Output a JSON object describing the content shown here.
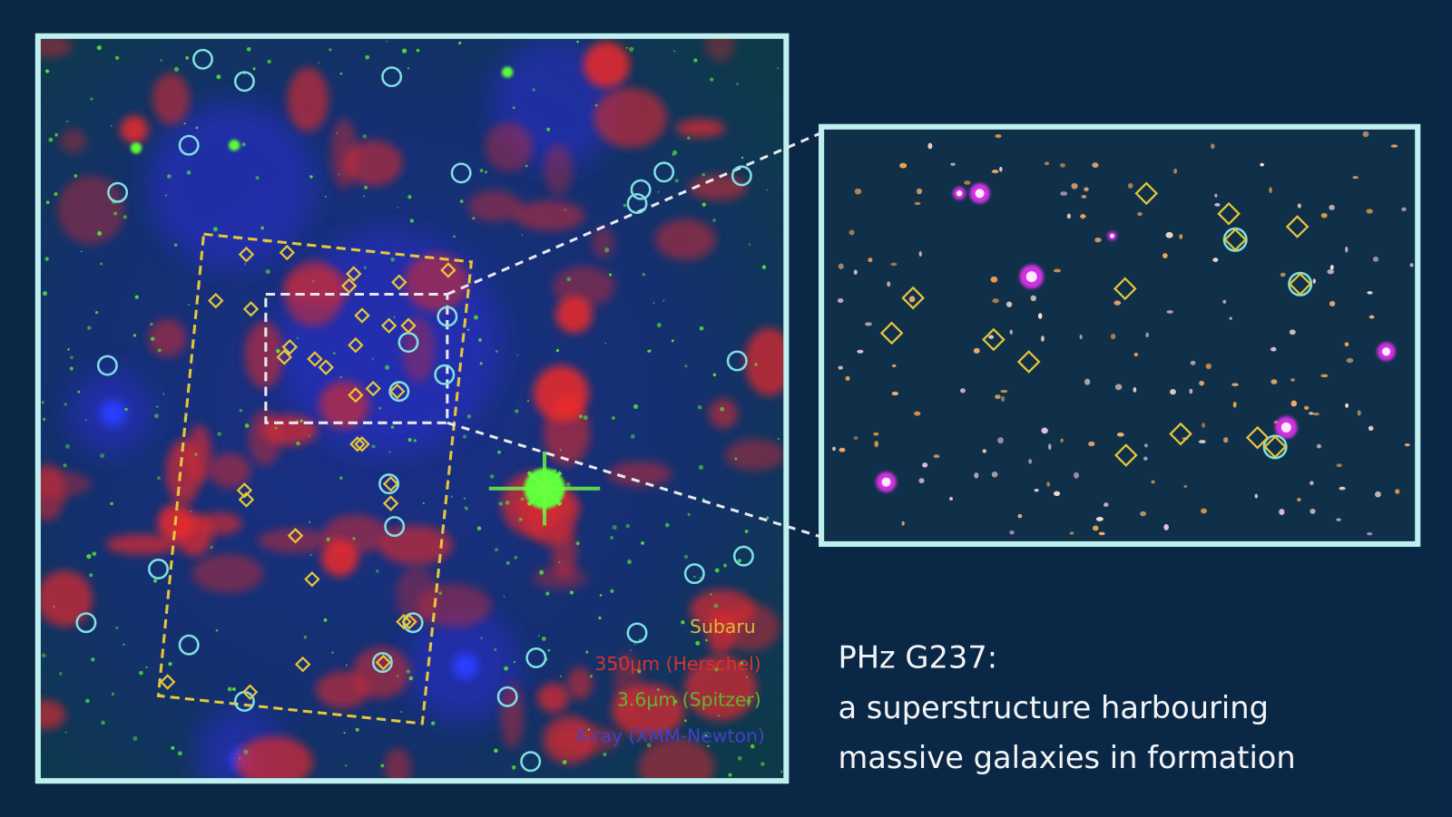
{
  "legend": [
    {
      "label": "Subaru",
      "color": "#d9b93a"
    },
    {
      "label": "350μm (Herschel)",
      "color": "#d8322e"
    },
    {
      "label": "3.6μm (Spitzer)",
      "color": "#5fb52f"
    },
    {
      "label": "X-ray (XMM-Newton)",
      "color": "#3f43c8"
    }
  ],
  "caption": {
    "title": "PHz G237:",
    "lines": [
      "a superstructure harbouring",
      "massive galaxies in formation"
    ]
  }
}
